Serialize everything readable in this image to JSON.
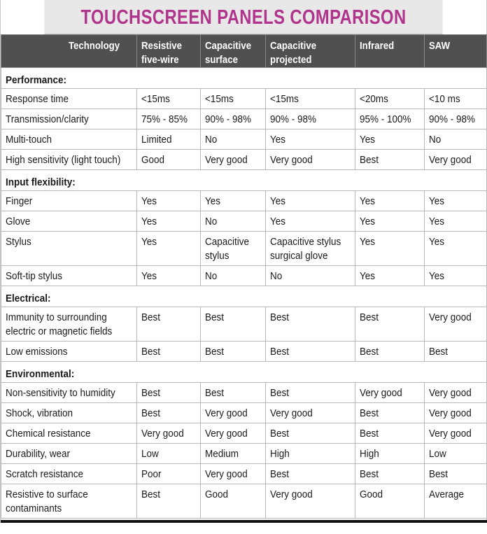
{
  "title": "TOUCHSCREEN PANELS COMPARISON",
  "columns": [
    "Technology",
    "Resistive five-wire",
    "Capacitive surface",
    "Capacitive projected",
    "Infrared",
    "SAW"
  ],
  "column_lines": [
    [
      "Technology"
    ],
    [
      "Resistive",
      "five-wire"
    ],
    [
      "Capacitive",
      "surface"
    ],
    [
      "Capacitive",
      "projected"
    ],
    [
      "Infrared"
    ],
    [
      "SAW"
    ]
  ],
  "colors": {
    "title_text": "#b0338c",
    "title_bg": "#e8e8e8",
    "header_bg": "#505050"
  },
  "sections": [
    {
      "name": "Performance:",
      "rows": [
        {
          "label": [
            "Response time"
          ],
          "values": [
            [
              "<15ms"
            ],
            [
              "<15ms"
            ],
            [
              "<15ms"
            ],
            [
              "<20ms"
            ],
            [
              "<10 ms"
            ]
          ]
        },
        {
          "label": [
            "Transmission/clarity"
          ],
          "values": [
            [
              "75% - 85%"
            ],
            [
              "90% - 98%"
            ],
            [
              "90% - 98%"
            ],
            [
              "95% - 100%"
            ],
            [
              "90% - 98%"
            ]
          ]
        },
        {
          "label": [
            "Multi-touch"
          ],
          "values": [
            [
              "Limited"
            ],
            [
              "No"
            ],
            [
              "Yes"
            ],
            [
              "Yes"
            ],
            [
              "No"
            ]
          ]
        },
        {
          "label": [
            "High sensitivity (light touch)"
          ],
          "values": [
            [
              "Good"
            ],
            [
              "Very good"
            ],
            [
              "Very good"
            ],
            [
              "Best"
            ],
            [
              "Very good"
            ]
          ]
        }
      ]
    },
    {
      "name": "Input flexibility:",
      "rows": [
        {
          "label": [
            "Finger"
          ],
          "values": [
            [
              "Yes"
            ],
            [
              "Yes"
            ],
            [
              "Yes"
            ],
            [
              "Yes"
            ],
            [
              "Yes"
            ]
          ]
        },
        {
          "label": [
            "Glove"
          ],
          "values": [
            [
              "Yes"
            ],
            [
              "No"
            ],
            [
              "Yes"
            ],
            [
              "Yes"
            ],
            [
              "Yes"
            ]
          ]
        },
        {
          "label": [
            "Stylus"
          ],
          "values": [
            [
              "Yes"
            ],
            [
              "Capacitive",
              "stylus"
            ],
            [
              "Capacitive stylus",
              "surgical glove"
            ],
            [
              "Yes"
            ],
            [
              "Yes"
            ]
          ]
        },
        {
          "label": [
            "Soft-tip stylus"
          ],
          "values": [
            [
              "Yes"
            ],
            [
              "No"
            ],
            [
              "No"
            ],
            [
              "Yes"
            ],
            [
              "Yes"
            ]
          ]
        }
      ]
    },
    {
      "name": "Electrical:",
      "rows": [
        {
          "label": [
            "Immunity to surrounding",
            "electric or magnetic fields"
          ],
          "values": [
            [
              "Best"
            ],
            [
              "Best"
            ],
            [
              "Best"
            ],
            [
              "Best"
            ],
            [
              "Very good"
            ]
          ]
        },
        {
          "label": [
            "Low emissions"
          ],
          "values": [
            [
              "Best"
            ],
            [
              "Best"
            ],
            [
              "Best"
            ],
            [
              "Best"
            ],
            [
              "Best"
            ]
          ]
        }
      ]
    },
    {
      "name": "Environmental:",
      "rows": [
        {
          "label": [
            "Non-sensitivity to humidity"
          ],
          "values": [
            [
              "Best"
            ],
            [
              "Best"
            ],
            [
              "Best"
            ],
            [
              "Very good"
            ],
            [
              "Very good"
            ]
          ]
        },
        {
          "label": [
            "Shock, vibration"
          ],
          "values": [
            [
              "Best"
            ],
            [
              "Very good"
            ],
            [
              "Very good"
            ],
            [
              "Best"
            ],
            [
              "Very good"
            ]
          ]
        },
        {
          "label": [
            "Chemical resistance"
          ],
          "values": [
            [
              "Very good"
            ],
            [
              "Very good"
            ],
            [
              "Best"
            ],
            [
              "Best"
            ],
            [
              "Very good"
            ]
          ]
        },
        {
          "label": [
            "Durability, wear"
          ],
          "values": [
            [
              "Low"
            ],
            [
              "Medium"
            ],
            [
              "High"
            ],
            [
              "High"
            ],
            [
              "Low"
            ]
          ]
        },
        {
          "label": [
            "Scratch resistance"
          ],
          "values": [
            [
              "Poor"
            ],
            [
              "Very good"
            ],
            [
              "Best"
            ],
            [
              "Best"
            ],
            [
              "Best"
            ]
          ]
        },
        {
          "label": [
            "Resistive to surface",
            "contaminants"
          ],
          "values": [
            [
              "Best"
            ],
            [
              "Good"
            ],
            [
              "Very good"
            ],
            [
              "Good"
            ],
            [
              "Average"
            ]
          ]
        }
      ]
    }
  ]
}
